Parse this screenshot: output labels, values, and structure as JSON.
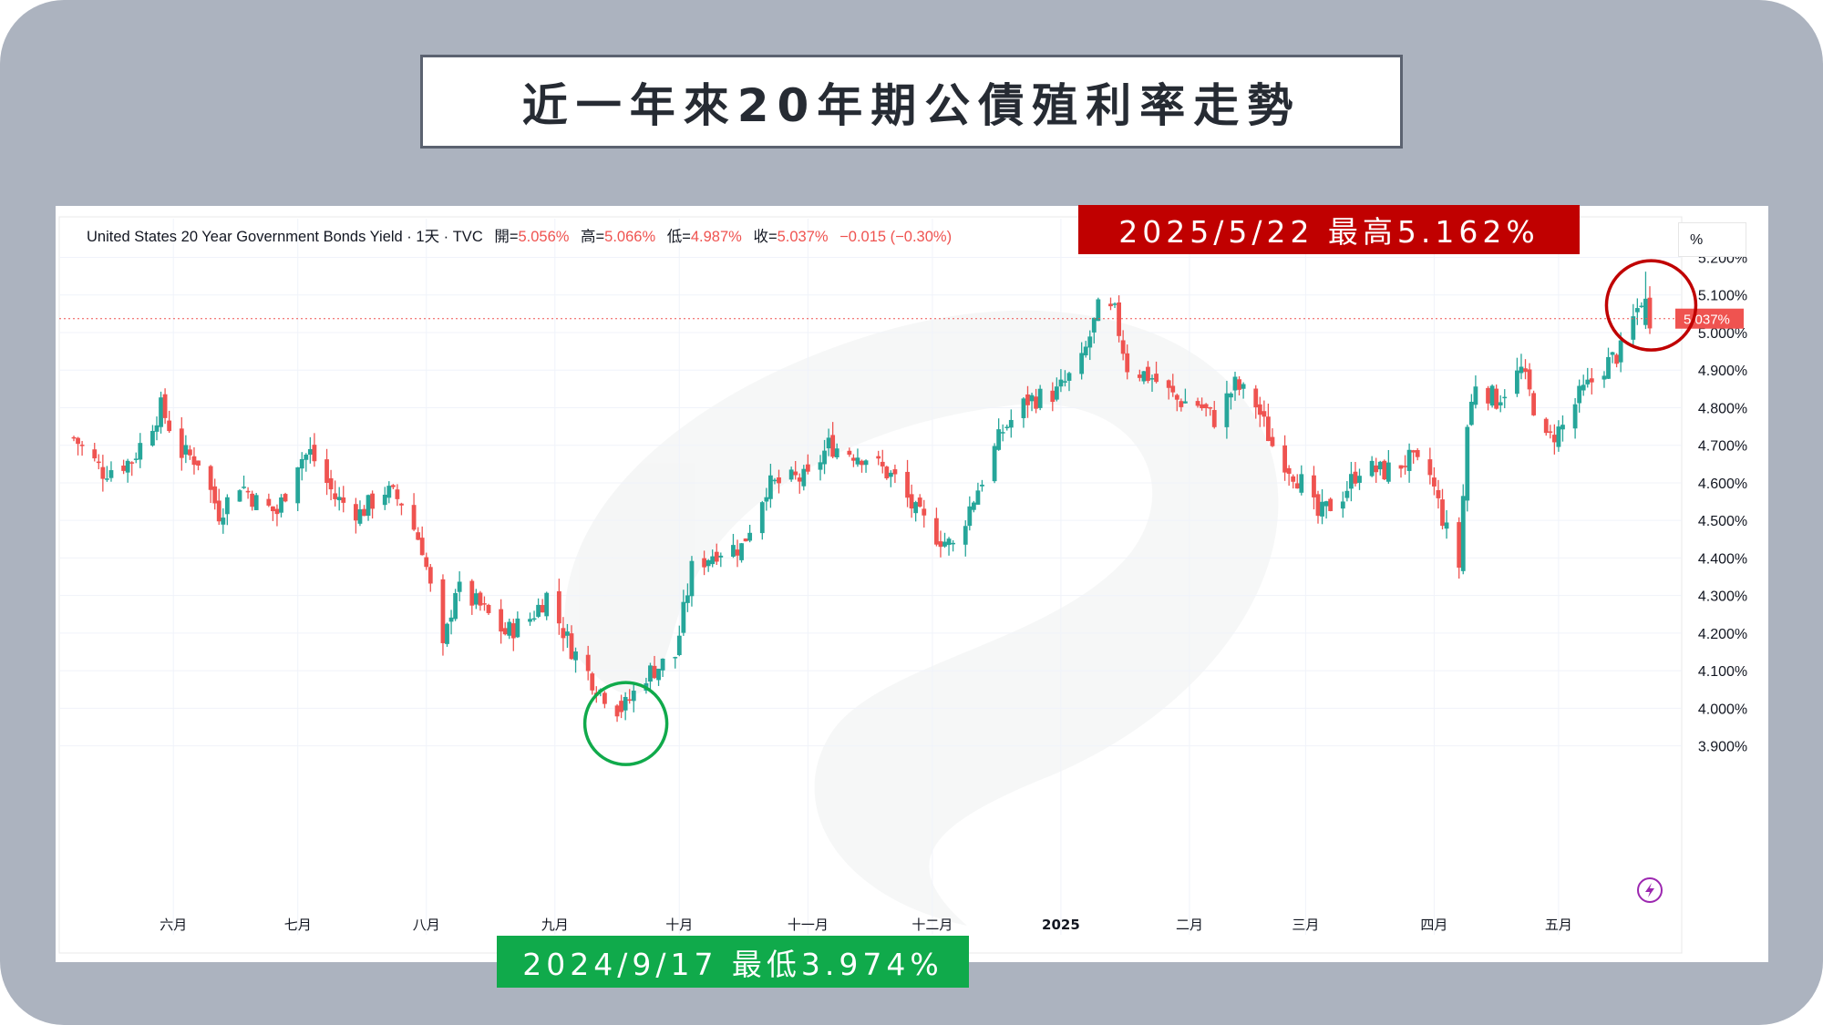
{
  "title": "近一年來20年期公債殖利率走勢",
  "header": {
    "symbol": "United States 20 Year Government Bonds Yield · 1天 · TVC",
    "open_label": "開=",
    "open_value": "5.056%",
    "high_label": "高=",
    "high_value": "5.066%",
    "low_label": "低=",
    "low_value": "4.987%",
    "close_label": "收=",
    "close_value": "5.037%",
    "change": "−0.015 (−0.30%)"
  },
  "annotations": {
    "high_banner": "2025/5/22 最高5.162%",
    "low_banner": "2024/9/17 最低3.974%"
  },
  "price_scale_unit": "%",
  "colors": {
    "up": "#26a69a",
    "down": "#ef5350",
    "high_marker": "#c00000",
    "low_marker": "#10aa4b",
    "background": "#acb3bf"
  },
  "icons": [
    "lightning-icon"
  ],
  "chart_data": {
    "type": "candlestick",
    "title": "近一年來20年期公債殖利率走勢",
    "ylim": [
      3.87,
      5.24
    ],
    "y_ticks": [
      "5.200%",
      "5.100%",
      "5.000%",
      "4.900%",
      "4.800%",
      "4.700%",
      "4.600%",
      "4.500%",
      "4.400%",
      "4.300%",
      "4.200%",
      "4.100%",
      "4.000%",
      "3.900%"
    ],
    "x_labels": [
      {
        "label": "六月",
        "date": "2024-06-01"
      },
      {
        "label": "七月",
        "date": "2024-07-01"
      },
      {
        "label": "八月",
        "date": "2024-08-01"
      },
      {
        "label": "九月",
        "date": "2024-09-01"
      },
      {
        "label": "十月",
        "date": "2024-10-01"
      },
      {
        "label": "十一月",
        "date": "2024-11-01"
      },
      {
        "label": "十二月",
        "date": "2024-12-01"
      },
      {
        "label": "2025",
        "date": "2025-01-01"
      },
      {
        "label": "二月",
        "date": "2025-02-01"
      },
      {
        "label": "三月",
        "date": "2025-03-01"
      },
      {
        "label": "四月",
        "date": "2025-04-01"
      },
      {
        "label": "五月",
        "date": "2025-05-01"
      }
    ],
    "series": [
      {
        "close_path": [
          [
            "2024-05-08",
            4.72
          ],
          [
            "2024-05-15",
            4.63
          ],
          [
            "2024-05-22",
            4.66
          ],
          [
            "2024-05-29",
            4.8
          ],
          [
            "2024-06-03",
            4.68
          ],
          [
            "2024-06-07",
            4.66
          ],
          [
            "2024-06-12",
            4.52
          ],
          [
            "2024-06-17",
            4.6
          ],
          [
            "2024-06-21",
            4.55
          ],
          [
            "2024-06-26",
            4.52
          ],
          [
            "2024-07-01",
            4.66
          ],
          [
            "2024-07-04",
            4.68
          ],
          [
            "2024-07-10",
            4.56
          ],
          [
            "2024-07-16",
            4.52
          ],
          [
            "2024-07-22",
            4.58
          ],
          [
            "2024-07-26",
            4.55
          ],
          [
            "2024-07-31",
            4.43
          ],
          [
            "2024-08-05",
            4.15
          ],
          [
            "2024-08-08",
            4.32
          ],
          [
            "2024-08-14",
            4.27
          ],
          [
            "2024-08-20",
            4.2
          ],
          [
            "2024-08-26",
            4.24
          ],
          [
            "2024-08-30",
            4.3
          ],
          [
            "2024-09-05",
            4.16
          ],
          [
            "2024-09-11",
            4.06
          ],
          [
            "2024-09-17",
            3.99
          ],
          [
            "2024-09-23",
            4.09
          ],
          [
            "2024-09-30",
            4.14
          ],
          [
            "2024-10-04",
            4.37
          ],
          [
            "2024-10-10",
            4.42
          ],
          [
            "2024-10-16",
            4.43
          ],
          [
            "2024-10-22",
            4.59
          ],
          [
            "2024-10-29",
            4.61
          ],
          [
            "2024-11-01",
            4.61
          ],
          [
            "2024-11-06",
            4.7
          ],
          [
            "2024-11-12",
            4.68
          ],
          [
            "2024-11-15",
            4.67
          ],
          [
            "2024-11-22",
            4.61
          ],
          [
            "2024-11-27",
            4.52
          ],
          [
            "2024-12-02",
            4.46
          ],
          [
            "2024-12-06",
            4.43
          ],
          [
            "2024-12-11",
            4.56
          ],
          [
            "2024-12-18",
            4.74
          ],
          [
            "2024-12-24",
            4.82
          ],
          [
            "2024-12-31",
            4.84
          ],
          [
            "2025-01-06",
            4.92
          ],
          [
            "2025-01-10",
            5.06
          ],
          [
            "2025-01-14",
            5.05
          ],
          [
            "2025-01-17",
            4.91
          ],
          [
            "2025-01-23",
            4.88
          ],
          [
            "2025-01-29",
            4.82
          ],
          [
            "2025-02-03",
            4.81
          ],
          [
            "2025-02-07",
            4.77
          ],
          [
            "2025-02-12",
            4.86
          ],
          [
            "2025-02-17",
            4.81
          ],
          [
            "2025-02-21",
            4.7
          ],
          [
            "2025-02-28",
            4.6
          ],
          [
            "2025-03-04",
            4.51
          ],
          [
            "2025-03-10",
            4.57
          ],
          [
            "2025-03-14",
            4.64
          ],
          [
            "2025-03-20",
            4.63
          ],
          [
            "2025-03-26",
            4.66
          ],
          [
            "2025-03-31",
            4.62
          ],
          [
            "2025-04-04",
            4.47
          ],
          [
            "2025-04-07",
            4.38
          ],
          [
            "2025-04-09",
            4.75
          ],
          [
            "2025-04-11",
            4.87
          ],
          [
            "2025-04-16",
            4.82
          ],
          [
            "2025-04-22",
            4.9
          ],
          [
            "2025-04-28",
            4.71
          ],
          [
            "2025-05-02",
            4.75
          ],
          [
            "2025-05-06",
            4.83
          ],
          [
            "2025-05-12",
            4.91
          ],
          [
            "2025-05-16",
            4.95
          ],
          [
            "2025-05-21",
            5.09
          ],
          [
            "2025-05-22",
            5.08
          ],
          [
            "2025-05-23",
            5.037
          ]
        ]
      }
    ],
    "annotations": [
      {
        "date": "2024-09-17",
        "label": "2024/9/17 最低3.974%",
        "value": 3.974
      },
      {
        "date": "2025-05-22",
        "label": "2025/5/22 最高5.162%",
        "value": 5.162
      }
    ],
    "last_value": 5.037,
    "last_value_label": "5.037%"
  }
}
